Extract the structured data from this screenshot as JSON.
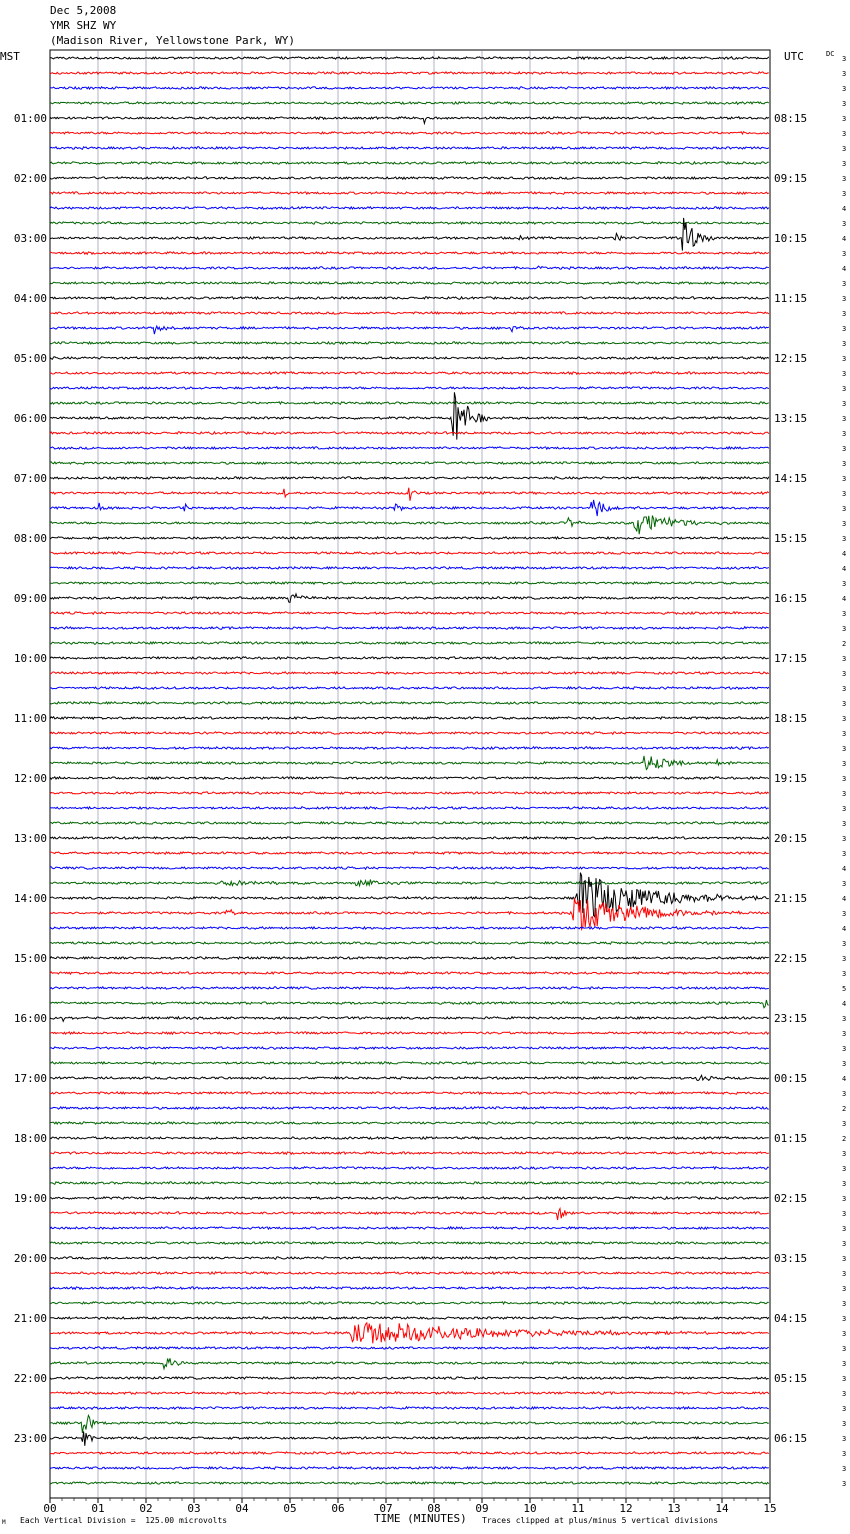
{
  "header": {
    "date": "Dec 5,2008",
    "station": "YMR SHZ WY",
    "location": "(Madison River, Yellowstone Park, WY)"
  },
  "left_axis_title": "MST",
  "right_axis_title": "UTC",
  "dc_label": "DC",
  "footer": {
    "corner_mark": "M",
    "scale": "Each Vertical Division =  125.00 microvolts",
    "clip": "Traces clipped at plus/minus 5 vertical divisions"
  },
  "colors": [
    "#000000",
    "#ff0000",
    "#0000ff",
    "#006400"
  ],
  "chart_data": {
    "type": "line",
    "xlabel": "TIME (MINUTES)",
    "x_ticks": [
      "00",
      "01",
      "02",
      "03",
      "04",
      "05",
      "06",
      "07",
      "08",
      "09",
      "10",
      "11",
      "12",
      "13",
      "14",
      "15"
    ],
    "xlim": [
      0,
      15
    ],
    "trace_count": 96,
    "left_hour_labels": [
      "01:00",
      "02:00",
      "03:00",
      "04:00",
      "05:00",
      "06:00",
      "07:00",
      "08:00",
      "09:00",
      "10:00",
      "11:00",
      "12:00",
      "13:00",
      "14:00",
      "15:00",
      "16:00",
      "17:00",
      "18:00",
      "19:00",
      "20:00",
      "21:00",
      "22:00",
      "23:00"
    ],
    "right_hour_labels": [
      "08:15",
      "09:15",
      "10:15",
      "11:15",
      "12:15",
      "13:15",
      "14:15",
      "15:15",
      "16:15",
      "17:15",
      "18:15",
      "19:15",
      "20:15",
      "21:15",
      "22:15",
      "23:15",
      "00:15",
      "01:15",
      "02:15",
      "03:15",
      "04:15",
      "05:15",
      "06:15"
    ],
    "dc_values": [
      "3",
      "3",
      "3",
      "3",
      "3",
      "3",
      "3",
      "3",
      "3",
      "3",
      "4",
      "3",
      "4",
      "3",
      "4",
      "3",
      "3",
      "3",
      "3",
      "3",
      "3",
      "3",
      "3",
      "3",
      "3",
      "3",
      "3",
      "3",
      "3",
      "3",
      "3",
      "3",
      "3",
      "4",
      "4",
      "3",
      "4",
      "3",
      "3",
      "2",
      "3",
      "3",
      "3",
      "3",
      "3",
      "3",
      "3",
      "3",
      "3",
      "3",
      "3",
      "3",
      "3",
      "3",
      "4",
      "3",
      "4",
      "3",
      "4",
      "3",
      "3",
      "3",
      "5",
      "4",
      "3",
      "3",
      "3",
      "3",
      "4",
      "3",
      "2",
      "3",
      "2",
      "3",
      "3",
      "3",
      "3",
      "3",
      "3",
      "3",
      "3",
      "3",
      "3",
      "3",
      "3",
      "3",
      "3",
      "3",
      "3",
      "3",
      "3",
      "3",
      "3",
      "3",
      "3",
      "3"
    ],
    "events": [
      {
        "trace": 4,
        "minute": 7.8,
        "amp": 0.6,
        "dur": 0.15
      },
      {
        "trace": 12,
        "minute": 13.2,
        "amp": 2.5,
        "dur": 0.7
      },
      {
        "trace": 12,
        "minute": 11.8,
        "amp": 0.6,
        "dur": 0.2
      },
      {
        "trace": 12,
        "minute": 9.8,
        "amp": 0.3,
        "dur": 0.1
      },
      {
        "trace": 14,
        "minute": 10.2,
        "amp": 0.6,
        "dur": 0.2
      },
      {
        "trace": 18,
        "minute": 2.2,
        "amp": 0.7,
        "dur": 0.5
      },
      {
        "trace": 18,
        "minute": 9.6,
        "amp": 0.5,
        "dur": 0.6
      },
      {
        "trace": 24,
        "minute": 8.4,
        "amp": 5,
        "dur": 0.7
      },
      {
        "trace": 29,
        "minute": 4.9,
        "amp": 1.2,
        "dur": 0.1
      },
      {
        "trace": 29,
        "minute": 7.5,
        "amp": 1.0,
        "dur": 0.2
      },
      {
        "trace": 30,
        "minute": 1.05,
        "amp": 0.7,
        "dur": 0.2
      },
      {
        "trace": 30,
        "minute": 2.8,
        "amp": 0.5,
        "dur": 0.3
      },
      {
        "trace": 30,
        "minute": 7.2,
        "amp": 0.8,
        "dur": 0.3
      },
      {
        "trace": 30,
        "minute": 11.3,
        "amp": 1.3,
        "dur": 1.0
      },
      {
        "trace": 31,
        "minute": 10.8,
        "amp": 0.6,
        "dur": 0.5
      },
      {
        "trace": 31,
        "minute": 12.2,
        "amp": 1.8,
        "dur": 1.8
      },
      {
        "trace": 36,
        "minute": 5.0,
        "amp": 0.6,
        "dur": 0.8
      },
      {
        "trace": 47,
        "minute": 12.4,
        "amp": 1.1,
        "dur": 1.5
      },
      {
        "trace": 47,
        "minute": 13.9,
        "amp": 0.3,
        "dur": 0.4
      },
      {
        "trace": 55,
        "minute": 3.6,
        "amp": 0.3,
        "dur": 3.0
      },
      {
        "trace": 55,
        "minute": 6.4,
        "amp": 0.6,
        "dur": 1.2
      },
      {
        "trace": 56,
        "minute": 11.0,
        "amp": 3.2,
        "dur": 4.0
      },
      {
        "trace": 57,
        "minute": 3.7,
        "amp": 0.5,
        "dur": 0.4
      },
      {
        "trace": 57,
        "minute": 10.9,
        "amp": 2.5,
        "dur": 3.5
      },
      {
        "trace": 63,
        "minute": 14.9,
        "amp": 1.2,
        "dur": 0.2
      },
      {
        "trace": 64,
        "minute": 0.3,
        "amp": 0.5,
        "dur": 0.1
      },
      {
        "trace": 64,
        "minute": 2.6,
        "amp": 0.4,
        "dur": 0.1
      },
      {
        "trace": 68,
        "minute": 13.5,
        "amp": 0.4,
        "dur": 0.8
      },
      {
        "trace": 77,
        "minute": 10.6,
        "amp": 1.0,
        "dur": 0.4
      },
      {
        "trace": 85,
        "minute": 6.3,
        "amp": 1.6,
        "dur": 7.5
      },
      {
        "trace": 87,
        "minute": 2.4,
        "amp": 1.0,
        "dur": 0.5
      },
      {
        "trace": 91,
        "minute": 0.7,
        "amp": 1.6,
        "dur": 0.5
      },
      {
        "trace": 92,
        "minute": 0.7,
        "amp": 1.4,
        "dur": 0.3
      }
    ]
  }
}
